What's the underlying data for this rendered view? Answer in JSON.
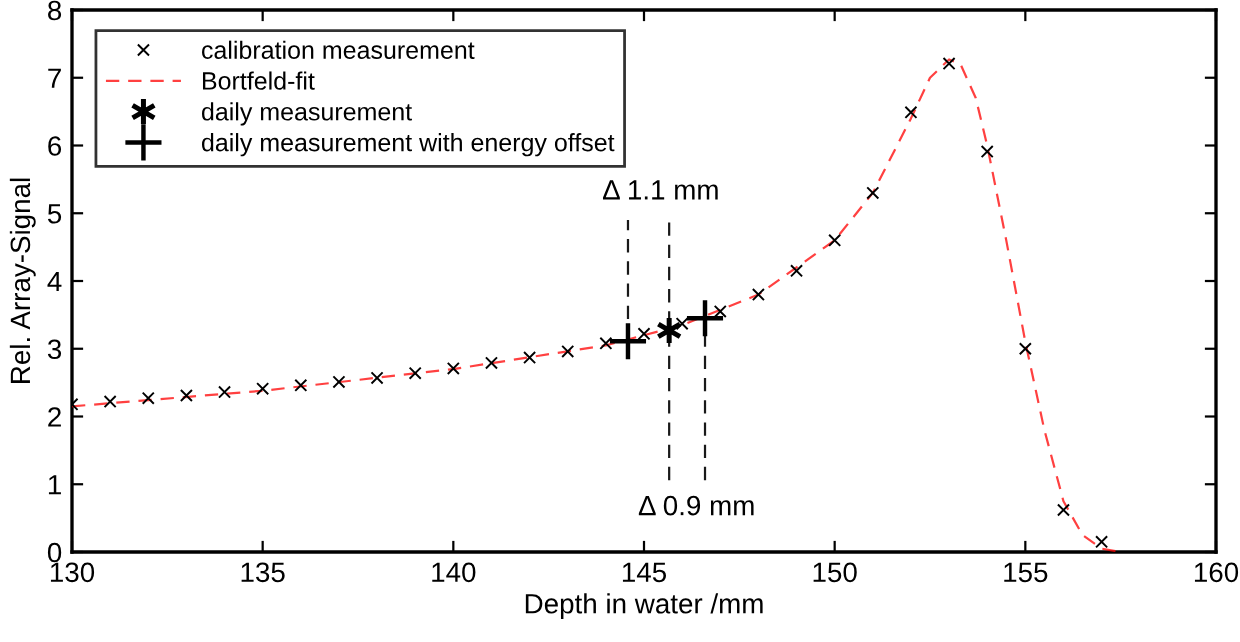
{
  "chart_data": {
    "type": "line",
    "xlabel": "Depth in water /mm",
    "ylabel": "Rel. Array-Signal",
    "xlim": [
      130,
      160
    ],
    "ylim": [
      0,
      8
    ],
    "xticks": [
      130,
      135,
      140,
      145,
      150,
      155,
      160
    ],
    "yticks": [
      0,
      1,
      2,
      3,
      4,
      5,
      6,
      7,
      8
    ],
    "grid": false,
    "legend": "top left",
    "series": [
      {
        "name": "calibration measurement",
        "type": "scatter",
        "marker": "cross",
        "color": "#000000",
        "x": [
          130,
          131,
          132,
          133,
          134,
          135,
          136,
          137,
          138,
          139,
          140,
          141,
          142,
          143,
          144,
          145,
          146,
          147,
          148,
          149,
          150,
          151,
          152,
          153,
          154,
          155,
          156,
          157
        ],
        "values": [
          2.18,
          2.22,
          2.27,
          2.31,
          2.36,
          2.41,
          2.46,
          2.51,
          2.57,
          2.64,
          2.71,
          2.79,
          2.87,
          2.96,
          3.08,
          3.22,
          3.37,
          3.55,
          3.8,
          4.15,
          4.6,
          5.3,
          6.49,
          7.21,
          5.91,
          3.0,
          0.62,
          0.15
        ]
      },
      {
        "name": "Bortfeld-fit",
        "line_style": "dashed",
        "color": "#ff0000",
        "x": [
          130,
          135,
          140,
          144,
          146,
          148,
          150,
          151,
          152,
          152.5,
          153,
          153.3,
          153.7,
          154,
          154.5,
          155,
          155.5,
          156,
          156.5,
          157,
          157.5
        ],
        "values": [
          2.15,
          2.38,
          2.7,
          3.05,
          3.35,
          3.8,
          4.6,
          5.3,
          6.4,
          7.0,
          7.27,
          7.2,
          6.7,
          6.0,
          4.6,
          3.1,
          1.8,
          0.75,
          0.25,
          0.05,
          0
        ]
      },
      {
        "name": "daily measurement",
        "type": "scatter",
        "color": "#000000",
        "x": [
          145.66
        ],
        "values": [
          3.27
        ]
      },
      {
        "name": "daily measurement with energy offset",
        "type": "scatter",
        "marker": "cross",
        "color": "#000000",
        "x": [
          144.58,
          146.6
        ],
        "values": [
          3.11,
          3.45
        ]
      },
      {
        "line_style": "dashed",
        "color": "#000000",
        "x": [
          144.58,
          144.58
        ],
        "values": [
          3.11,
          4.9
        ]
      },
      {
        "line_style": "dashed",
        "color": "#000000",
        "x": [
          145.66,
          145.66
        ],
        "values": [
          1.06,
          4.9
        ]
      },
      {
        "line_style": "dashed",
        "color": "#000000",
        "x": [
          146.6,
          146.6
        ],
        "values": [
          1.06,
          3.45
        ]
      }
    ],
    "annotations": [
      {
        "text": "Δ 1.1 mm",
        "x": 145.66,
        "y": 4.9
      },
      {
        "text": "Δ 0.9 mm",
        "x": 146.6,
        "y": 1.06
      }
    ]
  }
}
